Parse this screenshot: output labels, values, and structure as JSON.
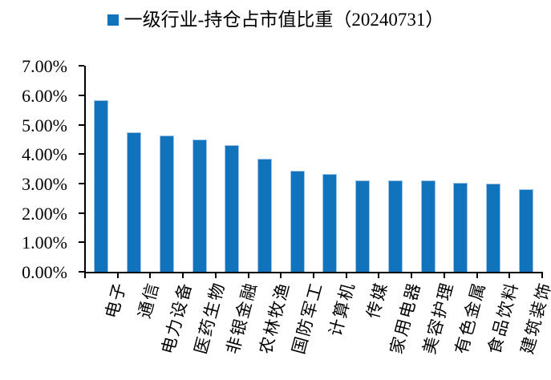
{
  "chart_data": {
    "type": "bar",
    "legend_label": "一级行业-持仓占市值比重（20240731）",
    "legend_marker_color": "#1173BC",
    "categories": [
      "电子",
      "通信",
      "电力设备",
      "医药生物",
      "非银金融",
      "农林牧渔",
      "国防军工",
      "计算机",
      "传媒",
      "家用电器",
      "美容护理",
      "有色金属",
      "食品饮料",
      "建筑装饰"
    ],
    "values": [
      5.84,
      4.75,
      4.63,
      4.5,
      4.31,
      3.85,
      3.44,
      3.33,
      3.12,
      3.11,
      3.1,
      3.03,
      2.99,
      2.81
    ],
    "unit": "%",
    "ylim": [
      0,
      7
    ],
    "y_ticks": [
      0,
      1,
      2,
      3,
      4,
      5,
      6,
      7
    ],
    "y_tick_labels": [
      "0.00%",
      "1.00%",
      "2.00%",
      "3.00%",
      "4.00%",
      "5.00%",
      "6.00%",
      "7.00%"
    ],
    "grid": false,
    "legend_position": "top",
    "bar_color": "#1173BC",
    "bar_border_color": "#9DC3E6",
    "axis_color": "#000000"
  }
}
